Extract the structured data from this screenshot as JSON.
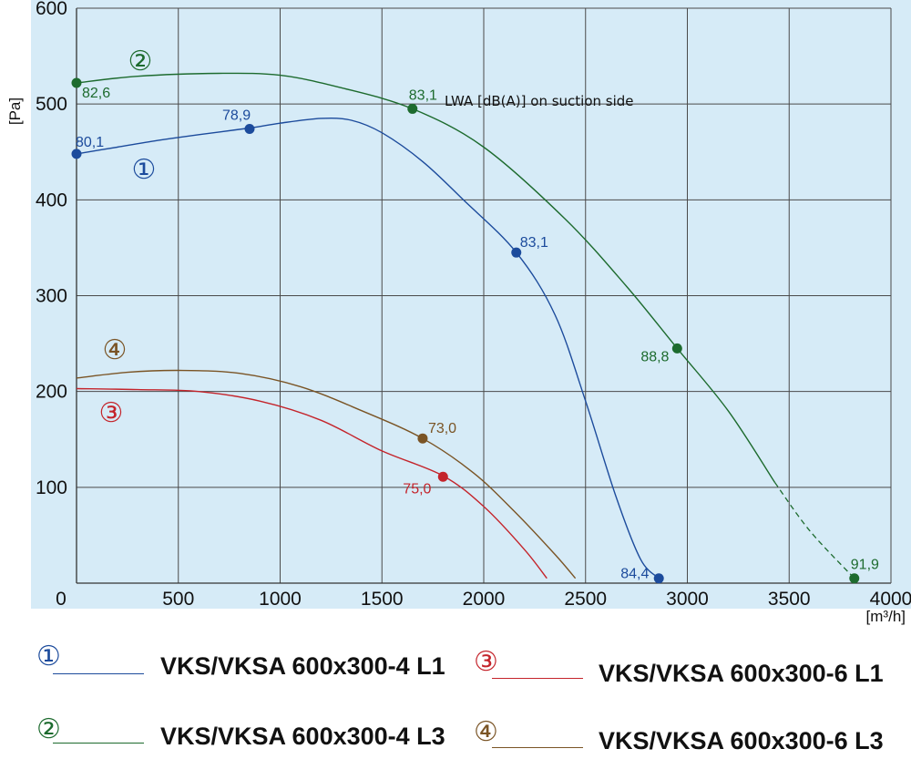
{
  "chart_data": {
    "type": "line",
    "xlabel": "[m³/h]",
    "ylabel": "[Pa]",
    "xlim": [
      0,
      4000
    ],
    "ylim": [
      0,
      600
    ],
    "x_ticks": [
      "0",
      "500",
      "1000",
      "1500",
      "2000",
      "2500",
      "3000",
      "3500",
      "4000"
    ],
    "y_ticks": [
      "100",
      "200",
      "300",
      "400",
      "500",
      "600"
    ],
    "grid": true,
    "background": "#d6ebf7",
    "annotation": "LWA [dB(A)] on suction side",
    "series": [
      {
        "id": "1",
        "marker_label": "①",
        "name": "VKS/VKSA 600x300-4 L1",
        "color": "#1c4b9c",
        "curve": [
          [
            0,
            448
          ],
          [
            200,
            455
          ],
          [
            400,
            462
          ],
          [
            600,
            468
          ],
          [
            850,
            475
          ],
          [
            1000,
            480
          ],
          [
            1200,
            485
          ],
          [
            1350,
            483
          ],
          [
            1500,
            470
          ],
          [
            1700,
            440
          ],
          [
            1900,
            400
          ],
          [
            2160,
            345
          ],
          [
            2350,
            280
          ],
          [
            2500,
            190
          ],
          [
            2650,
            90
          ],
          [
            2770,
            25
          ],
          [
            2860,
            5
          ]
        ],
        "points": [
          {
            "x": 0,
            "y": 448,
            "label": "80,1"
          },
          {
            "x": 850,
            "y": 474,
            "label": "78,9"
          },
          {
            "x": 2160,
            "y": 345,
            "label": "83,1"
          },
          {
            "x": 2860,
            "y": 5,
            "label": "84,4"
          }
        ]
      },
      {
        "id": "2",
        "marker_label": "②",
        "name": "VKS/VKSA 600x300-4 L3",
        "color": "#1d6b2e",
        "curve": [
          [
            0,
            522
          ],
          [
            300,
            529
          ],
          [
            700,
            532
          ],
          [
            1000,
            530
          ],
          [
            1300,
            517
          ],
          [
            1650,
            495
          ],
          [
            2000,
            455
          ],
          [
            2400,
            380
          ],
          [
            2700,
            310
          ],
          [
            2950,
            245
          ],
          [
            3200,
            180
          ],
          [
            3430,
            105
          ]
        ],
        "dashed": [
          [
            3430,
            105
          ],
          [
            3600,
            55
          ],
          [
            3820,
            5
          ]
        ],
        "points": [
          {
            "x": 0,
            "y": 522,
            "label": "82,6"
          },
          {
            "x": 1650,
            "y": 495,
            "label": "83,1"
          },
          {
            "x": 2950,
            "y": 245,
            "label": "88,8"
          },
          {
            "x": 3820,
            "y": 5,
            "label": "91,9"
          }
        ]
      },
      {
        "id": "3",
        "marker_label": "③",
        "name": "VKS/VKSA 600x300-6 L1",
        "color": "#c4242b",
        "curve": [
          [
            0,
            203
          ],
          [
            300,
            202
          ],
          [
            600,
            200
          ],
          [
            900,
            190
          ],
          [
            1200,
            170
          ],
          [
            1500,
            138
          ],
          [
            1800,
            112
          ],
          [
            2000,
            80
          ],
          [
            2200,
            35
          ],
          [
            2310,
            5
          ]
        ],
        "points": [
          {
            "x": 1800,
            "y": 111,
            "label": "75,0"
          }
        ]
      },
      {
        "id": "4",
        "marker_label": "④",
        "name": "VKS/VKSA 600x300-6 L3",
        "color": "#7a5425",
        "curve": [
          [
            0,
            214
          ],
          [
            250,
            220
          ],
          [
            500,
            222
          ],
          [
            800,
            219
          ],
          [
            1100,
            205
          ],
          [
            1400,
            180
          ],
          [
            1700,
            151
          ],
          [
            1950,
            115
          ],
          [
            2150,
            75
          ],
          [
            2350,
            30
          ],
          [
            2450,
            5
          ]
        ],
        "points": [
          {
            "x": 1700,
            "y": 151,
            "label": "73,0"
          }
        ]
      }
    ]
  }
}
